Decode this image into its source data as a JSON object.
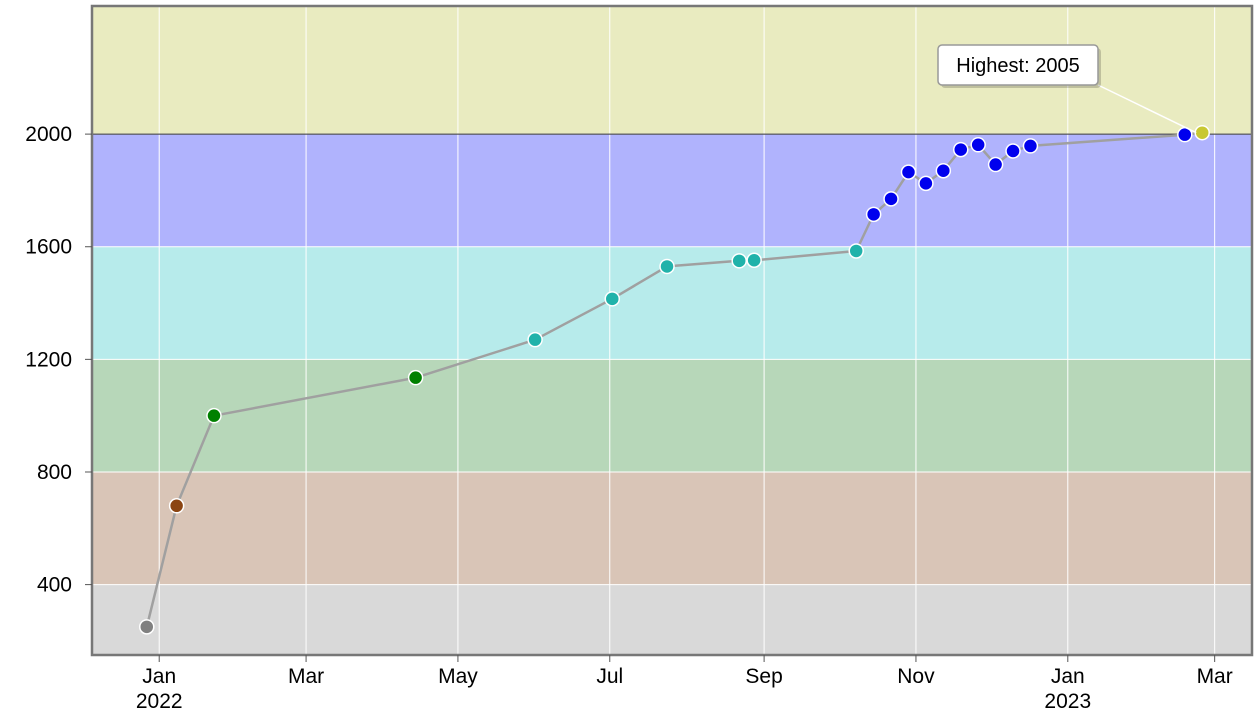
{
  "chart_data": {
    "type": "line",
    "title": "",
    "xlabel": "",
    "ylabel": "",
    "xlim": [
      "2021-12-05",
      "2023-03-16"
    ],
    "ylim": [
      150,
      2455
    ],
    "grid": true,
    "x_ticks": [
      {
        "date": "2022-01-01",
        "label": "Jan",
        "sublabel": "2022"
      },
      {
        "date": "2022-03-01",
        "label": "Mar"
      },
      {
        "date": "2022-05-01",
        "label": "May"
      },
      {
        "date": "2022-07-01",
        "label": "Jul"
      },
      {
        "date": "2022-09-01",
        "label": "Sep"
      },
      {
        "date": "2022-11-01",
        "label": "Nov"
      },
      {
        "date": "2023-01-01",
        "label": "Jan",
        "sublabel": "2023"
      },
      {
        "date": "2023-03-01",
        "label": "Mar"
      }
    ],
    "y_ticks": [
      {
        "value": 400,
        "label": "400"
      },
      {
        "value": 800,
        "label": "800"
      },
      {
        "value": 1200,
        "label": "1200"
      },
      {
        "value": 1600,
        "label": "1600"
      },
      {
        "value": 2000,
        "label": "2000"
      }
    ],
    "bands": [
      {
        "from": 150,
        "to": 400,
        "color": "#d9d9d9"
      },
      {
        "from": 400,
        "to": 800,
        "color": "#d9c5b7"
      },
      {
        "from": 800,
        "to": 1200,
        "color": "#b7d7b9"
      },
      {
        "from": 1200,
        "to": 1600,
        "color": "#b7ebeb"
      },
      {
        "from": 1600,
        "to": 2000,
        "color": "#b0b3fd"
      },
      {
        "from": 2000,
        "to": 2455,
        "color": "#e9ebc0"
      }
    ],
    "line_color": "#a0a0a0",
    "series": [
      {
        "points": [
          {
            "x": "2021-12-27",
            "y": 250,
            "color": "#808080"
          },
          {
            "x": "2022-01-08",
            "y": 680,
            "color": "#8b4513"
          },
          {
            "x": "2022-01-23",
            "y": 1000,
            "color": "#008000"
          },
          {
            "x": "2022-04-14",
            "y": 1135,
            "color": "#008000"
          },
          {
            "x": "2022-06-01",
            "y": 1270,
            "color": "#20b2aa"
          },
          {
            "x": "2022-07-02",
            "y": 1415,
            "color": "#20b2aa"
          },
          {
            "x": "2022-07-24",
            "y": 1530,
            "color": "#20b2aa"
          },
          {
            "x": "2022-08-22",
            "y": 1550,
            "color": "#20b2aa"
          },
          {
            "x": "2022-08-28",
            "y": 1552,
            "color": "#20b2aa"
          },
          {
            "x": "2022-10-08",
            "y": 1585,
            "color": "#20b2aa"
          },
          {
            "x": "2022-10-15",
            "y": 1715,
            "color": "#0000ee"
          },
          {
            "x": "2022-10-22",
            "y": 1770,
            "color": "#0000ee"
          },
          {
            "x": "2022-10-29",
            "y": 1865,
            "color": "#0000ee"
          },
          {
            "x": "2022-11-05",
            "y": 1825,
            "color": "#0000ee"
          },
          {
            "x": "2022-11-12",
            "y": 1870,
            "color": "#0000ee"
          },
          {
            "x": "2022-11-19",
            "y": 1945,
            "color": "#0000ee"
          },
          {
            "x": "2022-11-26",
            "y": 1962,
            "color": "#0000ee"
          },
          {
            "x": "2022-12-03",
            "y": 1892,
            "color": "#0000ee"
          },
          {
            "x": "2022-12-10",
            "y": 1940,
            "color": "#0000ee"
          },
          {
            "x": "2022-12-17",
            "y": 1958,
            "color": "#0000ee"
          },
          {
            "x": "2023-02-17",
            "y": 1998,
            "color": "#0000ee"
          },
          {
            "x": "2023-02-24",
            "y": 2005,
            "color": "#c8c832"
          }
        ]
      }
    ],
    "annotation": {
      "text": "Highest: 2005",
      "x": "2023-02-24",
      "y": 2005
    }
  }
}
